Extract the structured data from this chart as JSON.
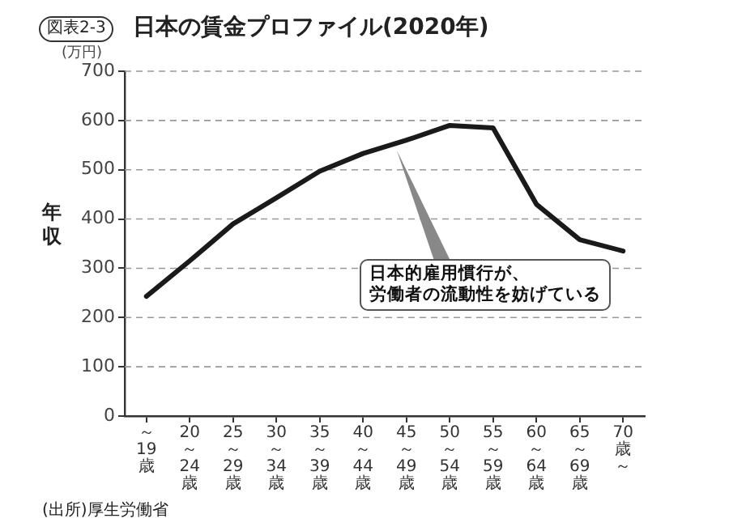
{
  "chart_data": {
    "type": "line",
    "title": "日本の賃金プロファイル(2020年)",
    "ylabel": "年収",
    "categories": [
      "～19歳",
      "20～24歳",
      "25～29歳",
      "30～34歳",
      "35～39歳",
      "40～44歳",
      "45～49歳",
      "50～54歳",
      "55～59歳",
      "60～64歳",
      "65～69歳",
      "70歳～"
    ],
    "series": [
      {
        "color": "#1a1a1a",
        "values": [
          243,
          315,
          390,
          443,
          497,
          533,
          560,
          590,
          585,
          430,
          358,
          335
        ]
      }
    ],
    "ylim": [
      0,
      700
    ],
    "yticks": [
      0,
      100,
      200,
      300,
      400,
      500,
      600,
      700
    ],
    "grid": "y",
    "legend": false,
    "marker": "none",
    "line_style": "solid",
    "annotations": [
      "図表2-3",
      "(万円)",
      "日本的雇用慣行が、労働者の流動性を妨げている",
      "(出所)厚生労働省"
    ]
  }
}
